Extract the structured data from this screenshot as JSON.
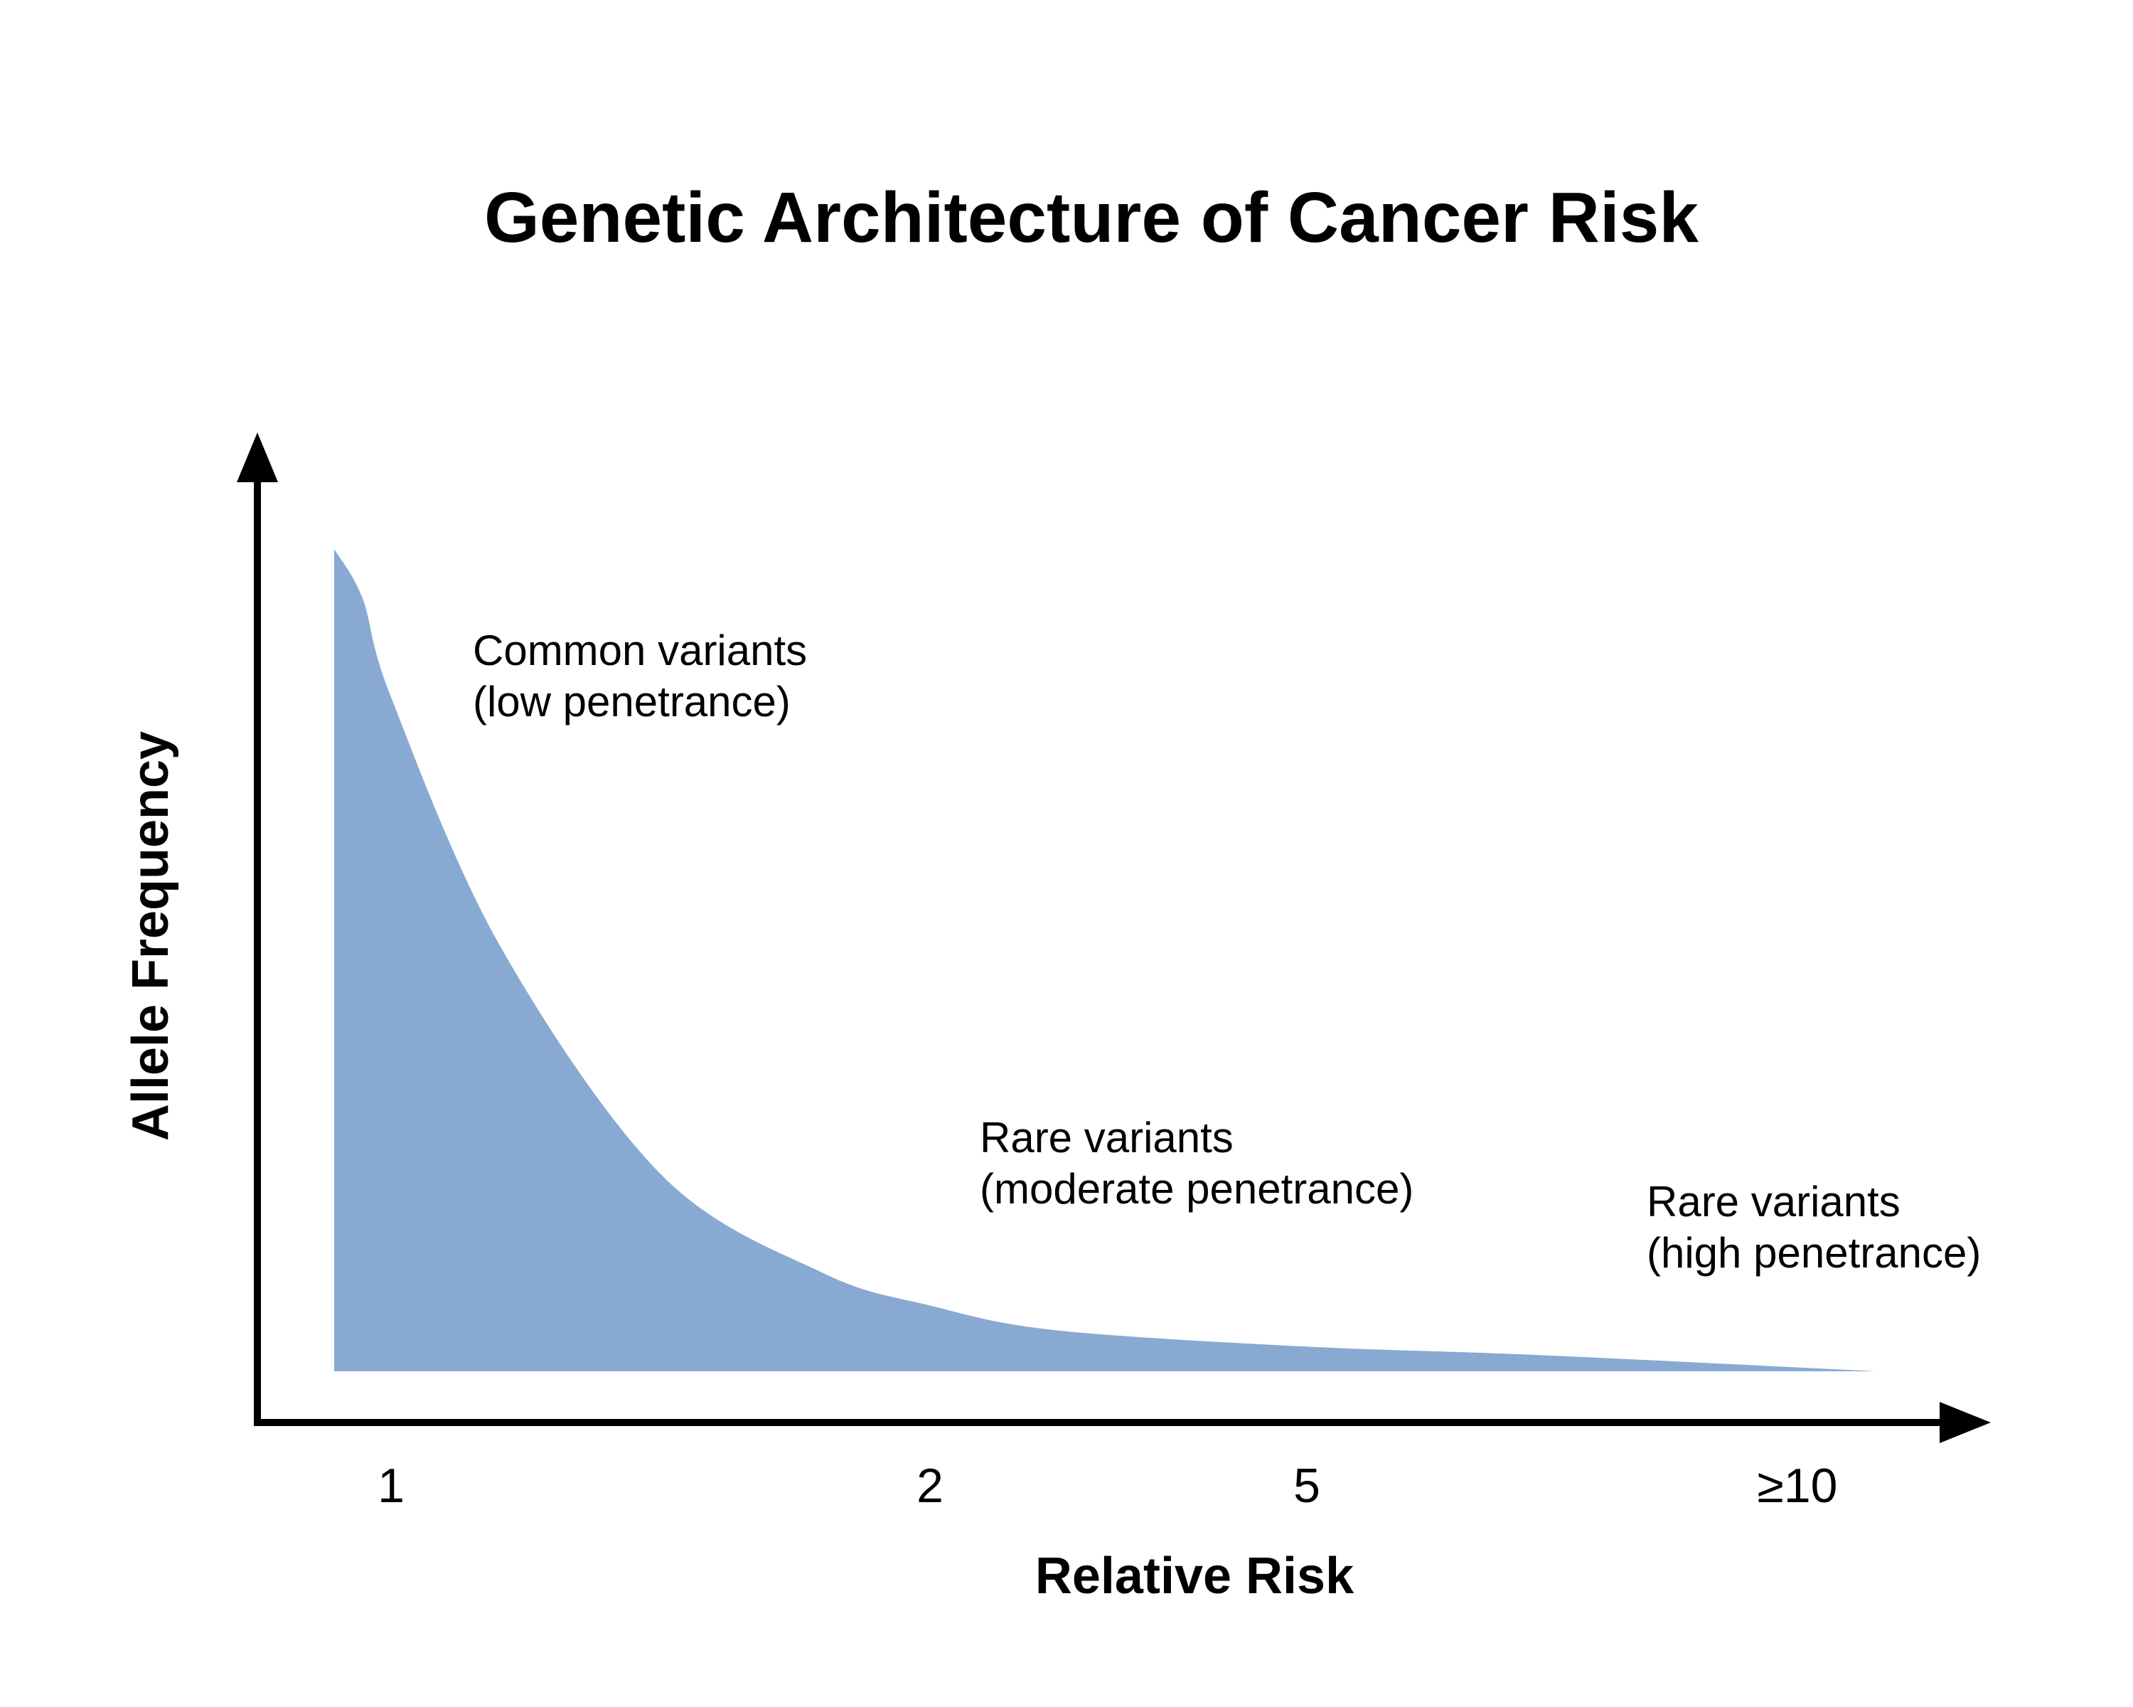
{
  "chart_data": {
    "type": "area",
    "title": "Genetic Architecture of Cancer Risk",
    "xlabel": "Relative Risk",
    "ylabel": "Allele Frequency",
    "x_ticks": [
      "1",
      "2",
      "5",
      "≥10"
    ],
    "series": [
      {
        "name": "Allele Frequency",
        "color": "#88aad2",
        "x": [
          0.9,
          0.95,
          1.0,
          1.2,
          1.5,
          1.8,
          2.0,
          3.0,
          5.0,
          7.0,
          10.0
        ],
        "values": [
          1.0,
          0.94,
          0.82,
          0.52,
          0.24,
          0.12,
          0.08,
          0.05,
          0.03,
          0.02,
          0.0
        ]
      }
    ],
    "annotations": [
      {
        "line1": "Common variants",
        "line2": "(low penetrance)"
      },
      {
        "line1": "Rare variants",
        "line2": "(moderate penetrance)"
      },
      {
        "line1": "Rare variants",
        "line2": "(high penetrance)"
      }
    ],
    "grid": false,
    "legend": "none"
  }
}
